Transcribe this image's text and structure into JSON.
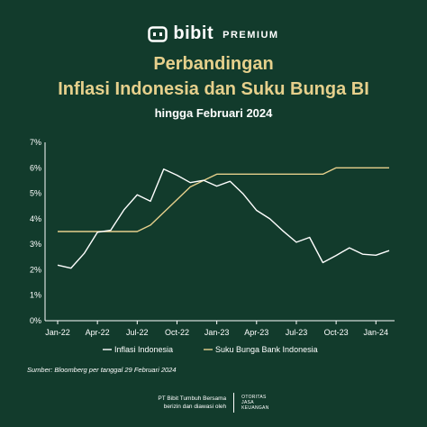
{
  "brand": {
    "name": "bibit",
    "tier": "PREMIUM",
    "logo_icon": "bibit-logo-icon"
  },
  "title_line1": "Perbandingan",
  "title_line2": "Inflasi Indonesia dan Suku Bunga BI",
  "subtitle": "hingga Februari 2024",
  "source": "Sumber: Bloomberg per tanggal 29 Februari 2024",
  "footer": {
    "line1": "PT Bibit Tumbuh Bersama",
    "line2": "berizin dan diawasi oleh",
    "regulator": [
      "OTORITAS",
      "JASA",
      "KEUANGAN"
    ]
  },
  "colors": {
    "background": "#123b2c",
    "title": "#e6d08c",
    "inflation": "#ffffff",
    "bi_rate": "#e6d08c"
  },
  "chart_data": {
    "type": "line",
    "x": [
      "Jan-22",
      "Feb-22",
      "Mar-22",
      "Apr-22",
      "May-22",
      "Jun-22",
      "Jul-22",
      "Aug-22",
      "Sep-22",
      "Oct-22",
      "Nov-22",
      "Dec-22",
      "Jan-23",
      "Feb-23",
      "Mar-23",
      "Apr-23",
      "May-23",
      "Jun-23",
      "Jul-23",
      "Aug-23",
      "Sep-23",
      "Oct-23",
      "Nov-23",
      "Dec-23",
      "Jan-24",
      "Feb-24"
    ],
    "x_tick_labels": [
      "Jan-22",
      "Apr-22",
      "Jul-22",
      "Oct-22",
      "Jan-23",
      "Apr-23",
      "Jul-23",
      "Oct-23",
      "Jan-24"
    ],
    "series": [
      {
        "name": "Inflasi Indonesia",
        "values": [
          2.18,
          2.06,
          2.64,
          3.47,
          3.55,
          4.35,
          4.94,
          4.69,
          5.95,
          5.71,
          5.42,
          5.51,
          5.28,
          5.47,
          4.97,
          4.33,
          4.0,
          3.52,
          3.08,
          3.27,
          2.28,
          2.56,
          2.86,
          2.61,
          2.57,
          2.75
        ]
      },
      {
        "name": "Suku Bunga Bank Indonesia",
        "values": [
          3.5,
          3.5,
          3.5,
          3.5,
          3.5,
          3.5,
          3.5,
          3.75,
          4.25,
          4.75,
          5.25,
          5.5,
          5.75,
          5.75,
          5.75,
          5.75,
          5.75,
          5.75,
          5.75,
          5.75,
          5.75,
          6.0,
          6.0,
          6.0,
          6.0,
          6.0
        ]
      }
    ],
    "y_ticks": [
      "0%",
      "1%",
      "2%",
      "3%",
      "4%",
      "5%",
      "6%",
      "7%"
    ],
    "ylim": [
      0,
      7
    ],
    "grid": false,
    "legend": "bottom"
  }
}
